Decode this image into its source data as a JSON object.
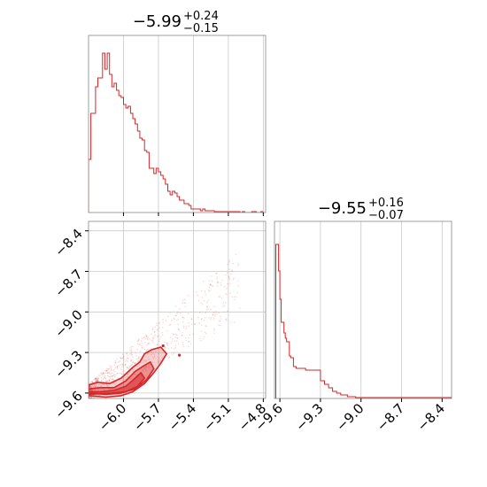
{
  "chart_data": [
    {
      "type": "histogram",
      "panel": "marginal-x",
      "title": {
        "median": "5.99",
        "plus": "+0.24",
        "minus": "−0.15",
        "sign": "−"
      },
      "xlim": [
        -6.3,
        -4.78
      ],
      "x_ticks": [
        -6.0,
        -5.7,
        -5.4,
        -5.1,
        -4.8
      ],
      "bins": [
        [
          -6.3,
          0.3
        ],
        [
          -6.28,
          0.56
        ],
        [
          -6.26,
          0.56
        ],
        [
          -6.24,
          0.71
        ],
        [
          -6.22,
          0.76
        ],
        [
          -6.2,
          0.76
        ],
        [
          -6.18,
          0.9
        ],
        [
          -6.16,
          0.81
        ],
        [
          -6.14,
          0.9
        ],
        [
          -6.12,
          0.78
        ],
        [
          -6.1,
          0.71
        ],
        [
          -6.08,
          0.73
        ],
        [
          -6.06,
          0.69
        ],
        [
          -6.04,
          0.66
        ],
        [
          -6.02,
          0.65
        ],
        [
          -6.0,
          0.61
        ],
        [
          -5.98,
          0.59
        ],
        [
          -5.96,
          0.6
        ],
        [
          -5.94,
          0.56
        ],
        [
          -5.92,
          0.53
        ],
        [
          -5.9,
          0.5
        ],
        [
          -5.88,
          0.46
        ],
        [
          -5.86,
          0.42
        ],
        [
          -5.84,
          0.41
        ],
        [
          -5.82,
          0.35
        ],
        [
          -5.8,
          0.34
        ],
        [
          -5.78,
          0.25
        ],
        [
          -5.76,
          0.25
        ],
        [
          -5.74,
          0.22
        ],
        [
          -5.72,
          0.25
        ],
        [
          -5.7,
          0.23
        ],
        [
          -5.68,
          0.21
        ],
        [
          -5.66,
          0.19
        ],
        [
          -5.64,
          0.16
        ],
        [
          -5.62,
          0.12
        ],
        [
          -5.6,
          0.1
        ],
        [
          -5.58,
          0.12
        ],
        [
          -5.56,
          0.11
        ],
        [
          -5.54,
          0.09
        ],
        [
          -5.52,
          0.07
        ],
        [
          -5.5,
          0.07
        ],
        [
          -5.48,
          0.05
        ],
        [
          -5.46,
          0.05
        ],
        [
          -5.44,
          0.04
        ],
        [
          -5.42,
          0.02
        ],
        [
          -5.4,
          0.02
        ],
        [
          -5.38,
          0.02
        ],
        [
          -5.36,
          0.02
        ],
        [
          -5.34,
          0.01
        ],
        [
          -5.32,
          0.02
        ],
        [
          -5.3,
          0.01
        ],
        [
          -5.28,
          0.01
        ],
        [
          -5.26,
          0.01
        ],
        [
          -5.24,
          0.01
        ],
        [
          -5.22,
          0.005
        ],
        [
          -5.2,
          0.005
        ],
        [
          -5.18,
          0.005
        ],
        [
          -5.16,
          0.005
        ],
        [
          -5.14,
          0.005
        ],
        [
          -5.12,
          0.005
        ],
        [
          -5.1,
          0.005
        ],
        [
          -5.08,
          0.005
        ],
        [
          -5.06,
          0.005
        ],
        [
          -5.04,
          0.005
        ],
        [
          -5.02,
          0.005
        ],
        [
          -5.0,
          0.0
        ],
        [
          -4.98,
          0.005
        ],
        [
          -4.96,
          0.0
        ],
        [
          -4.94,
          0.0
        ],
        [
          -4.92,
          0.0
        ],
        [
          -4.9,
          0.005
        ],
        [
          -4.88,
          0.005
        ],
        [
          -4.86,
          0.0
        ],
        [
          -4.84,
          0.0
        ],
        [
          -4.82,
          0.005
        ]
      ]
    },
    {
      "type": "histogram",
      "panel": "marginal-y",
      "title": {
        "median": "9.55",
        "plus": "+0.16",
        "minus": "−0.07",
        "sign": "−"
      },
      "xlim": [
        -9.64,
        -8.33
      ],
      "x_ticks": [
        -9.6,
        -9.3,
        -9.0,
        -8.7,
        -8.4
      ],
      "bins": [
        [
          -9.64,
          0.0
        ],
        [
          -9.63,
          0.87
        ],
        [
          -9.61,
          0.72
        ],
        [
          -9.6,
          0.56
        ],
        [
          -9.59,
          0.43
        ],
        [
          -9.57,
          0.37
        ],
        [
          -9.56,
          0.34
        ],
        [
          -9.55,
          0.32
        ],
        [
          -9.53,
          0.24
        ],
        [
          -9.52,
          0.23
        ],
        [
          -9.5,
          0.18
        ],
        [
          -9.48,
          0.17
        ],
        [
          -9.47,
          0.17
        ],
        [
          -9.45,
          0.17
        ],
        [
          -9.44,
          0.17
        ],
        [
          -9.42,
          0.17
        ],
        [
          -9.41,
          0.16
        ],
        [
          -9.39,
          0.16
        ],
        [
          -9.37,
          0.16
        ],
        [
          -9.36,
          0.16
        ],
        [
          -9.35,
          0.16
        ],
        [
          -9.33,
          0.16
        ],
        [
          -9.32,
          0.16
        ],
        [
          -9.3,
          0.1
        ],
        [
          -9.29,
          0.1
        ],
        [
          -9.27,
          0.08
        ],
        [
          -9.26,
          0.08
        ],
        [
          -9.24,
          0.06
        ],
        [
          -9.23,
          0.06
        ],
        [
          -9.21,
          0.04
        ],
        [
          -9.2,
          0.04
        ],
        [
          -9.18,
          0.03
        ],
        [
          -9.16,
          0.03
        ],
        [
          -9.15,
          0.02
        ],
        [
          -9.13,
          0.02
        ],
        [
          -9.12,
          0.02
        ],
        [
          -9.1,
          0.01
        ],
        [
          -9.09,
          0.01
        ],
        [
          -9.07,
          0.01
        ],
        [
          -9.06,
          0.01
        ],
        [
          -9.04,
          0.005
        ],
        [
          -9.03,
          0.005
        ],
        [
          -9.01,
          0.005
        ],
        [
          -8.99,
          0.005
        ],
        [
          -8.98,
          0.005
        ],
        [
          -8.96,
          0.005
        ],
        [
          -8.95,
          0.005
        ],
        [
          -8.93,
          0.005
        ],
        [
          -8.91,
          0.005
        ],
        [
          -8.9,
          0.005
        ],
        [
          -8.88,
          0.005
        ],
        [
          -8.87,
          0.005
        ],
        [
          -8.85,
          0.005
        ],
        [
          -8.83,
          0.005
        ],
        [
          -8.82,
          0.005
        ],
        [
          -8.8,
          0.005
        ],
        [
          -8.79,
          0.005
        ],
        [
          -8.77,
          0.005
        ],
        [
          -8.75,
          0.005
        ],
        [
          -8.74,
          0.005
        ],
        [
          -8.72,
          0.005
        ],
        [
          -8.7,
          0.005
        ],
        [
          -8.69,
          0.005
        ],
        [
          -8.67,
          0.005
        ],
        [
          -8.66,
          0.005
        ],
        [
          -8.64,
          0.005
        ],
        [
          -8.62,
          0.005
        ],
        [
          -8.61,
          0.005
        ],
        [
          -8.59,
          0.005
        ],
        [
          -8.58,
          0.005
        ],
        [
          -8.56,
          0.005
        ],
        [
          -8.54,
          0.005
        ],
        [
          -8.53,
          0.005
        ],
        [
          -8.51,
          0.005
        ],
        [
          -8.5,
          0.005
        ],
        [
          -8.48,
          0.005
        ],
        [
          -8.46,
          0.005
        ],
        [
          -8.45,
          0.005
        ],
        [
          -8.43,
          0.005
        ],
        [
          -8.41,
          0.005
        ],
        [
          -8.4,
          0.005
        ],
        [
          -8.38,
          0.005
        ],
        [
          -8.36,
          0.005
        ],
        [
          -8.35,
          0.005
        ]
      ]
    },
    {
      "type": "scatter",
      "panel": "joint",
      "xlim": [
        -6.3,
        -4.78
      ],
      "ylim": [
        -9.64,
        -8.33
      ],
      "x_ticks": [
        -6.0,
        -5.7,
        -5.4,
        -5.1,
        -4.8
      ],
      "y_ticks": [
        -8.4,
        -8.7,
        -9.0,
        -9.3,
        -9.6
      ],
      "contours": [
        [
          [
            -6.3,
            -9.54
          ],
          [
            -6.22,
            -9.52
          ],
          [
            -6.12,
            -9.53
          ],
          [
            -6.02,
            -9.49
          ],
          [
            -5.92,
            -9.41
          ],
          [
            -5.86,
            -9.37
          ],
          [
            -5.82,
            -9.31
          ],
          [
            -5.76,
            -9.28
          ],
          [
            -5.68,
            -9.26
          ],
          [
            -5.63,
            -9.31
          ],
          [
            -5.68,
            -9.38
          ],
          [
            -5.74,
            -9.45
          ],
          [
            -5.82,
            -9.53
          ],
          [
            -5.92,
            -9.59
          ],
          [
            -6.02,
            -9.62
          ],
          [
            -6.15,
            -9.63
          ],
          [
            -6.3,
            -9.62
          ]
        ],
        [
          [
            -6.3,
            -9.57
          ],
          [
            -6.2,
            -9.56
          ],
          [
            -6.08,
            -9.56
          ],
          [
            -5.98,
            -9.51
          ],
          [
            -5.9,
            -9.44
          ],
          [
            -5.83,
            -9.4
          ],
          [
            -5.77,
            -9.37
          ],
          [
            -5.74,
            -9.42
          ],
          [
            -5.8,
            -9.5
          ],
          [
            -5.9,
            -9.57
          ],
          [
            -6.02,
            -9.6
          ],
          [
            -6.15,
            -9.61
          ],
          [
            -6.3,
            -9.6
          ]
        ],
        [
          [
            -6.3,
            -9.59
          ],
          [
            -6.2,
            -9.59
          ],
          [
            -6.08,
            -9.58
          ],
          [
            -5.98,
            -9.55
          ],
          [
            -5.9,
            -9.49
          ],
          [
            -5.85,
            -9.45
          ],
          [
            -5.82,
            -9.49
          ],
          [
            -5.88,
            -9.55
          ],
          [
            -5.98,
            -9.59
          ],
          [
            -6.1,
            -9.6
          ],
          [
            -6.3,
            -9.61
          ]
        ]
      ]
    }
  ]
}
